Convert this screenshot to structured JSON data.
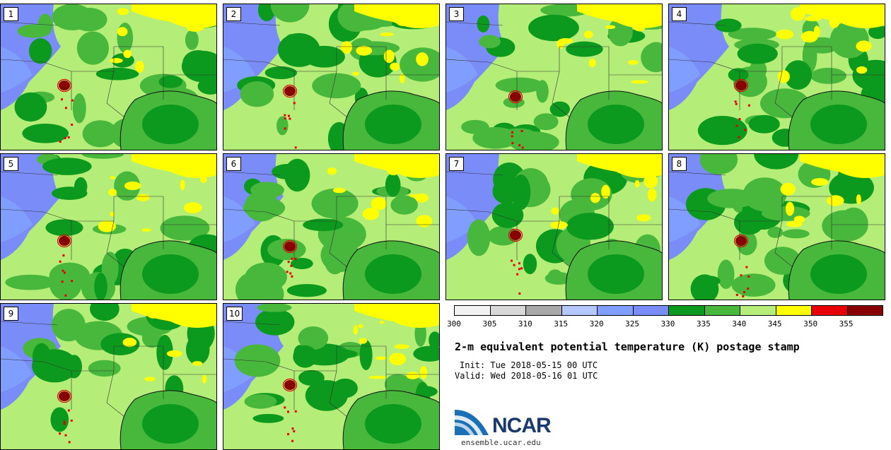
{
  "panels": [
    {
      "label": "1"
    },
    {
      "label": "2"
    },
    {
      "label": "3"
    },
    {
      "label": "4"
    },
    {
      "label": "5"
    },
    {
      "label": "6"
    },
    {
      "label": "7"
    },
    {
      "label": "8"
    },
    {
      "label": "9"
    },
    {
      "label": "10"
    }
  ],
  "colorbar": {
    "colors": [
      "#f2f2f2",
      "#d8d8d8",
      "#a8a8a8",
      "#b4c8ff",
      "#7f9eff",
      "#7a8cf7",
      "#0c9a1e",
      "#48b83c",
      "#b4ee78",
      "#ffff00",
      "#e80000",
      "#880000"
    ],
    "ticks": [
      "300",
      "305",
      "310",
      "315",
      "320",
      "325",
      "330",
      "335",
      "340",
      "345",
      "350",
      "355"
    ]
  },
  "title": "2-m equivalent potential temperature (K) postage stamp",
  "init": "Init: Tue 2018-05-15 00 UTC",
  "valid": "Valid: Wed 2018-05-16 01 UTC",
  "logo": {
    "text": "NCAR",
    "url": "ensemble.ucar.edu"
  }
}
